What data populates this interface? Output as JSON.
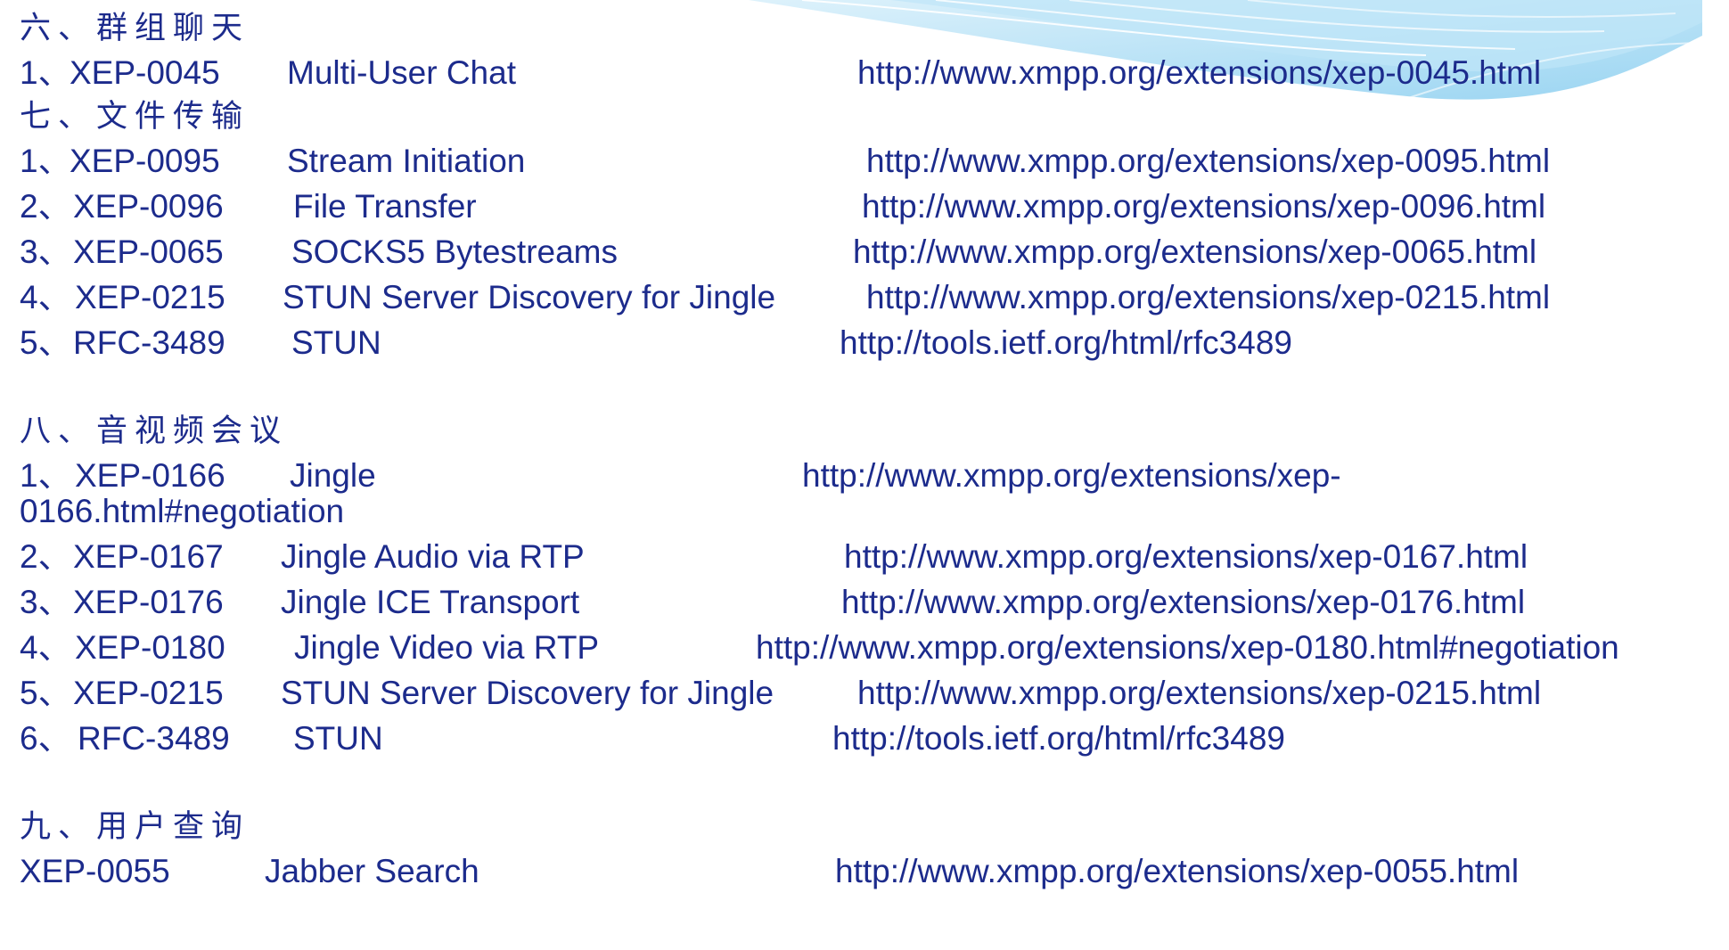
{
  "sections": [
    {
      "heading": "六、群组聊天",
      "rows": [
        {
          "num": "1、",
          "code": "XEP-0045",
          "name": "Multi-User Chat",
          "url": "http://www.xmpp.org/extensions/xep-0045.html"
        }
      ]
    },
    {
      "heading": "七、文件传输",
      "rows": [
        {
          "num": "1、",
          "code": "XEP-0095",
          "name": "Stream Initiation",
          "url": "http://www.xmpp.org/extensions/xep-0095.html"
        },
        {
          "num": "2、",
          "code": "XEP-0096",
          "name": "File Transfer",
          "url": "http://www.xmpp.org/extensions/xep-0096.html"
        },
        {
          "num": "3、",
          "code": "XEP-0065",
          "name": "SOCKS5 Bytestreams",
          "url": "http://www.xmpp.org/extensions/xep-0065.html"
        },
        {
          "num": "4、",
          "code": "XEP-0215",
          "name": "STUN Server Discovery for Jingle",
          "url": "http://www.xmpp.org/extensions/xep-0215.html"
        },
        {
          "num": "5、",
          "code": "RFC-3489",
          "name": "STUN",
          "url": "http://tools.ietf.org/html/rfc3489"
        }
      ]
    },
    {
      "heading": "八、音视频会议",
      "rows": [
        {
          "num": "1、",
          "code": "XEP-0166",
          "name": "Jingle",
          "url": "http://www.xmpp.org/extensions/xep-",
          "url_cont": "0166.html#negotiation"
        },
        {
          "num": "2、",
          "code": "XEP-0167",
          "name": "Jingle Audio via RTP",
          "url": "http://www.xmpp.org/extensions/xep-0167.html"
        },
        {
          "num": "3、",
          "code": "XEP-0176",
          "name": "Jingle ICE Transport",
          "url": "http://www.xmpp.org/extensions/xep-0176.html"
        },
        {
          "num": "4、",
          "code": "XEP-0180",
          "name": "Jingle Video via RTP",
          "url": "http://www.xmpp.org/extensions/xep-0180.html#negotiation"
        },
        {
          "num": "5、",
          "code": "XEP-0215",
          "name": "STUN Server Discovery for Jingle",
          "url": "http://www.xmpp.org/extensions/xep-0215.html"
        },
        {
          "num": "6、",
          "code": "RFC-3489",
          "name": "STUN",
          "url": "http://tools.ietf.org/html/rfc3489"
        }
      ]
    },
    {
      "heading": "九、用户查询",
      "rows": [
        {
          "num": "",
          "code": "XEP-0055",
          "name": "Jabber Search",
          "url": "http://www.xmpp.org/extensions/xep-0055.html"
        }
      ]
    }
  ],
  "colors": {
    "text": "#1c2b8c",
    "accent_light": "#bfe6f8",
    "accent": "#7cc8ee"
  }
}
